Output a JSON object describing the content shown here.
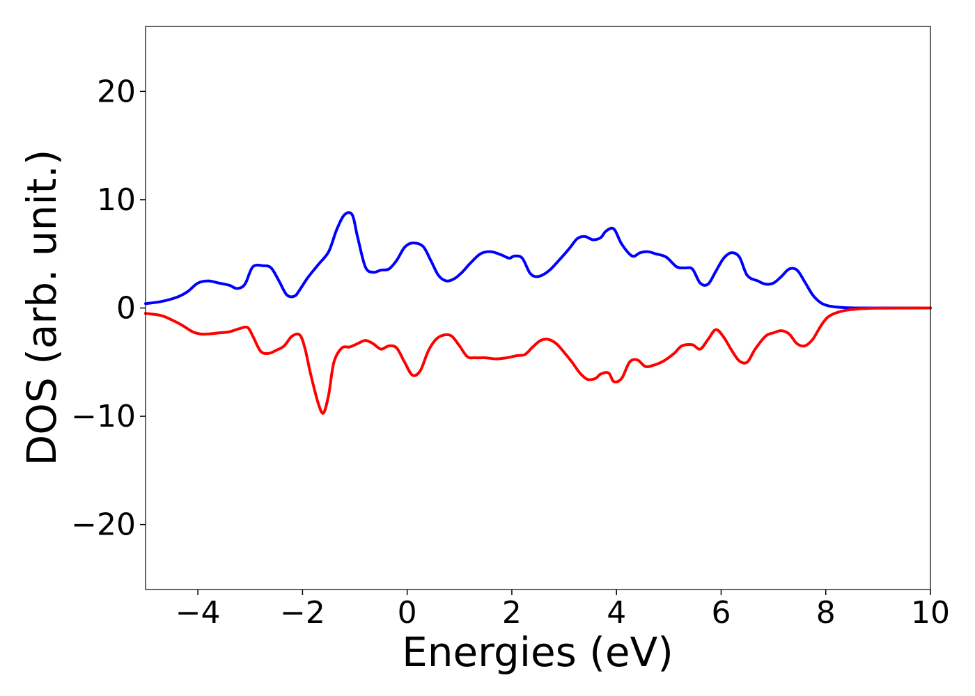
{
  "chart_data": {
    "type": "line",
    "xlabel": "Energies (eV)",
    "ylabel": "DOS (arb. unit.)",
    "xlim": [
      -5,
      10
    ],
    "ylim": [
      -26,
      26
    ],
    "x_ticks": [
      -4,
      -2,
      0,
      2,
      4,
      6,
      8,
      10
    ],
    "x_tick_labels": [
      "−4",
      "−2",
      "0",
      "2",
      "4",
      "6",
      "8",
      "10"
    ],
    "y_ticks": [
      -20,
      -10,
      0,
      10,
      20
    ],
    "y_tick_labels": [
      "−20",
      "−10",
      "0",
      "10",
      "20"
    ],
    "grid": false,
    "legend": "none",
    "series": [
      {
        "color": "#0000ff",
        "x": [
          -5.0,
          -4.7,
          -4.4,
          -4.2,
          -4.0,
          -3.8,
          -3.6,
          -3.4,
          -3.25,
          -3.1,
          -2.95,
          -2.75,
          -2.6,
          -2.45,
          -2.3,
          -2.15,
          -2.05,
          -1.9,
          -1.7,
          -1.5,
          -1.35,
          -1.2,
          -1.05,
          -0.95,
          -0.8,
          -0.65,
          -0.5,
          -0.35,
          -0.2,
          -0.05,
          0.1,
          0.3,
          0.45,
          0.6,
          0.75,
          0.9,
          1.05,
          1.2,
          1.4,
          1.6,
          1.8,
          1.95,
          2.05,
          2.2,
          2.35,
          2.5,
          2.7,
          2.9,
          3.1,
          3.25,
          3.4,
          3.55,
          3.7,
          3.8,
          3.95,
          4.1,
          4.3,
          4.45,
          4.6,
          4.75,
          4.95,
          5.15,
          5.3,
          5.45,
          5.6,
          5.75,
          5.9,
          6.05,
          6.2,
          6.35,
          6.5,
          6.7,
          6.85,
          7.0,
          7.15,
          7.3,
          7.45,
          7.6,
          7.75,
          7.9,
          8.05,
          8.3,
          8.6,
          9.0,
          10.0
        ],
        "y": [
          0.4,
          0.6,
          1.0,
          1.5,
          2.3,
          2.5,
          2.3,
          2.1,
          1.8,
          2.2,
          3.8,
          3.9,
          3.7,
          2.5,
          1.2,
          1.1,
          1.7,
          2.8,
          4.0,
          5.2,
          7.2,
          8.6,
          8.6,
          6.6,
          3.8,
          3.3,
          3.5,
          3.6,
          4.4,
          5.6,
          6.0,
          5.7,
          4.4,
          3.0,
          2.5,
          2.7,
          3.3,
          4.1,
          5.0,
          5.2,
          4.9,
          4.6,
          4.8,
          4.6,
          3.2,
          2.9,
          3.4,
          4.4,
          5.5,
          6.4,
          6.6,
          6.3,
          6.5,
          7.1,
          7.3,
          5.9,
          4.8,
          5.1,
          5.2,
          5.0,
          4.7,
          3.8,
          3.7,
          3.6,
          2.3,
          2.2,
          3.4,
          4.6,
          5.1,
          4.7,
          3.0,
          2.5,
          2.2,
          2.3,
          2.9,
          3.6,
          3.5,
          2.4,
          1.2,
          0.5,
          0.2,
          0.05,
          0.0,
          0.0,
          0.0
        ]
      },
      {
        "color": "#ff0000",
        "x": [
          -5.0,
          -4.7,
          -4.5,
          -4.3,
          -4.1,
          -3.95,
          -3.8,
          -3.6,
          -3.4,
          -3.2,
          -3.05,
          -2.95,
          -2.8,
          -2.65,
          -2.5,
          -2.35,
          -2.2,
          -2.05,
          -1.95,
          -1.85,
          -1.7,
          -1.6,
          -1.5,
          -1.4,
          -1.25,
          -1.1,
          -0.95,
          -0.8,
          -0.65,
          -0.5,
          -0.35,
          -0.2,
          -0.05,
          0.1,
          0.25,
          0.4,
          0.55,
          0.7,
          0.85,
          1.0,
          1.15,
          1.3,
          1.5,
          1.7,
          1.9,
          2.1,
          2.25,
          2.4,
          2.55,
          2.7,
          2.85,
          3.0,
          3.15,
          3.3,
          3.45,
          3.6,
          3.7,
          3.85,
          3.95,
          4.1,
          4.25,
          4.4,
          4.55,
          4.7,
          4.9,
          5.1,
          5.25,
          5.45,
          5.6,
          5.75,
          5.9,
          6.05,
          6.2,
          6.35,
          6.5,
          6.65,
          6.85,
          7.0,
          7.15,
          7.3,
          7.45,
          7.6,
          7.75,
          7.9,
          8.05,
          8.3,
          8.6,
          9.0,
          10.0
        ],
        "y": [
          -0.5,
          -0.7,
          -1.1,
          -1.6,
          -2.2,
          -2.4,
          -2.4,
          -2.3,
          -2.2,
          -1.9,
          -1.8,
          -2.6,
          -4.0,
          -4.2,
          -3.9,
          -3.5,
          -2.6,
          -2.5,
          -3.8,
          -6.0,
          -8.8,
          -9.7,
          -8.0,
          -5.0,
          -3.7,
          -3.6,
          -3.3,
          -3.0,
          -3.3,
          -3.8,
          -3.5,
          -3.7,
          -5.0,
          -6.2,
          -5.8,
          -4.0,
          -2.9,
          -2.5,
          -2.6,
          -3.5,
          -4.5,
          -4.6,
          -4.6,
          -4.7,
          -4.6,
          -4.4,
          -4.3,
          -3.6,
          -3.0,
          -2.9,
          -3.3,
          -4.1,
          -5.0,
          -6.0,
          -6.6,
          -6.5,
          -6.1,
          -6.0,
          -6.8,
          -6.5,
          -5.0,
          -4.8,
          -5.4,
          -5.3,
          -4.9,
          -4.2,
          -3.5,
          -3.4,
          -3.8,
          -2.9,
          -2.0,
          -2.7,
          -3.9,
          -4.9,
          -5.0,
          -3.8,
          -2.6,
          -2.3,
          -2.1,
          -2.4,
          -3.3,
          -3.5,
          -2.9,
          -1.7,
          -0.8,
          -0.3,
          -0.1,
          -0.02,
          0.0
        ]
      }
    ]
  }
}
